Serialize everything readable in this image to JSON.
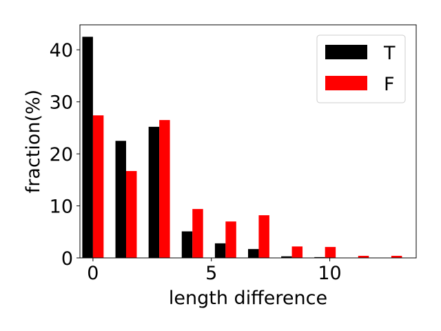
{
  "chart_data": {
    "type": "bar",
    "xlabel": "length difference",
    "ylabel": "fraction(%)",
    "xlim": [
      -0.55,
      13.65
    ],
    "ylim": [
      0,
      44.8
    ],
    "xticks": [
      0,
      5,
      10
    ],
    "yticks": [
      0,
      10,
      20,
      30,
      40
    ],
    "x": [
      0,
      1.4,
      2.8,
      4.2,
      5.6,
      7.0,
      8.4,
      9.8,
      11.2,
      12.6
    ],
    "bar_width": 0.45,
    "legend_position": "top-right",
    "series": [
      {
        "name": "T",
        "color": "#000000",
        "values": [
          42.5,
          22.5,
          25.2,
          5.1,
          2.8,
          1.7,
          0.3,
          0.15,
          0.0,
          0.0
        ]
      },
      {
        "name": "F",
        "color": "#ff0000",
        "values": [
          27.4,
          16.7,
          26.5,
          9.4,
          7.0,
          8.2,
          2.2,
          2.1,
          0.4,
          0.4
        ]
      }
    ]
  }
}
